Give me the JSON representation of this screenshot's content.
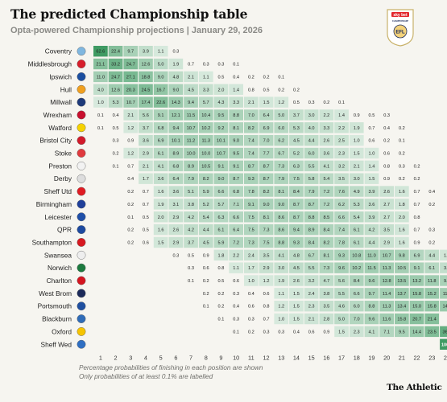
{
  "header": {
    "title": "The predicted Championship table",
    "subtitle": "Opta-powered Championship projections | January 29, 2026"
  },
  "logo": {
    "brand": "sky bet",
    "league": "CHAMPIONSHIP",
    "badge": "EFL"
  },
  "notes": {
    "line1": "Percentage probabilities of finishing in each position are shown",
    "line2": "Only probabilities of at least 0.1% are labelled"
  },
  "footer": {
    "brand": "The Athletic"
  },
  "colors": {
    "background": "#f6f5f0",
    "cell_low": "#eef5ef",
    "cell_high": "#3f9b63"
  },
  "chart_data": {
    "type": "heatmap",
    "x": [
      1,
      2,
      3,
      4,
      5,
      6,
      7,
      8,
      9,
      10,
      11,
      12,
      13,
      14,
      15,
      16,
      17,
      18,
      19,
      20,
      21,
      22,
      23,
      24
    ],
    "rows": [
      {
        "team": "Coventry",
        "crest_color": "#7fb7e0",
        "values": [
          62.6,
          22.4,
          9.7,
          3.9,
          1.1,
          0.3
        ]
      },
      {
        "team": "Middlesbrough",
        "crest_color": "#d71e2b",
        "values": [
          21.1,
          33.2,
          24.7,
          12.6,
          5.0,
          1.9,
          0.7,
          0.3,
          0.3,
          0.1
        ]
      },
      {
        "team": "Ipswich",
        "crest_color": "#1c4fa0",
        "values": [
          11.0,
          24.7,
          27.1,
          18.8,
          9.0,
          4.8,
          2.1,
          1.1,
          0.5,
          0.4,
          0.2,
          0.2,
          0.1
        ]
      },
      {
        "team": "Hull",
        "crest_color": "#f0a020",
        "values": [
          4.0,
          12.6,
          20.3,
          24.5,
          16.7,
          9.0,
          4.5,
          3.3,
          2.0,
          1.4,
          0.8,
          0.5,
          0.2,
          0.2
        ]
      },
      {
        "team": "Millwall",
        "crest_color": "#1e3a7a",
        "values": [
          1.0,
          5.3,
          10.7,
          17.4,
          22.6,
          14.3,
          9.4,
          5.7,
          4.3,
          3.3,
          2.1,
          1.5,
          1.2,
          0.5,
          0.3,
          0.2,
          0.1
        ]
      },
      {
        "team": "Wrexham",
        "crest_color": "#c8102e",
        "values": [
          0.1,
          0.4,
          2.1,
          5.6,
          9.1,
          12.1,
          11.5,
          10.4,
          9.5,
          8.8,
          7.0,
          6.4,
          5.0,
          3.7,
          3.0,
          2.2,
          1.4,
          0.9,
          0.5,
          0.3
        ]
      },
      {
        "team": "Watford",
        "crest_color": "#f5d200",
        "values": [
          0.1,
          0.5,
          1.2,
          3.7,
          6.8,
          9.4,
          10.7,
          10.2,
          9.2,
          8.1,
          8.2,
          6.9,
          6.0,
          5.3,
          4.0,
          3.3,
          2.2,
          1.9,
          0.7,
          0.4,
          0.2
        ]
      },
      {
        "team": "Bristol City",
        "crest_color": "#d21a2a",
        "values": [
          null,
          0.3,
          0.9,
          3.6,
          6.9,
          10.1,
          11.2,
          11.3,
          10.1,
          9.0,
          7.4,
          7.0,
          6.2,
          4.5,
          4.4,
          2.6,
          2.5,
          1.0,
          0.6,
          0.2,
          0.1
        ]
      },
      {
        "team": "Stoke",
        "crest_color": "#e03a3e",
        "values": [
          null,
          0.2,
          1.2,
          2.9,
          6.1,
          8.9,
          10.0,
          10.0,
          10.7,
          9.5,
          7.4,
          7.7,
          6.7,
          5.2,
          6.0,
          3.6,
          2.3,
          1.5,
          1.0,
          0.6,
          0.2
        ]
      },
      {
        "team": "Preston",
        "crest_color": "#f2f2f2",
        "values": [
          null,
          0.1,
          0.7,
          2.1,
          4.1,
          6.8,
          8.9,
          10.5,
          9.1,
          9.1,
          8.7,
          8.7,
          7.3,
          6.3,
          5.5,
          4.1,
          3.2,
          2.1,
          1.4,
          0.8,
          0.3,
          0.2
        ]
      },
      {
        "team": "Derby",
        "crest_color": "#dddddd",
        "values": [
          null,
          null,
          0.4,
          1.7,
          3.6,
          6.4,
          7.9,
          8.2,
          9.0,
          8.7,
          9.3,
          8.7,
          7.9,
          7.5,
          5.8,
          5.4,
          3.5,
          3.0,
          1.5,
          0.9,
          0.2,
          0.2
        ]
      },
      {
        "team": "Sheff Utd",
        "crest_color": "#e01b22",
        "values": [
          null,
          null,
          0.2,
          0.7,
          1.6,
          3.6,
          5.1,
          5.9,
          6.6,
          6.8,
          7.8,
          8.2,
          8.1,
          8.4,
          7.9,
          7.2,
          7.6,
          4.9,
          3.9,
          2.6,
          1.6,
          0.7,
          0.4
        ]
      },
      {
        "team": "Birmingham",
        "crest_color": "#1f3f9a",
        "values": [
          null,
          null,
          0.2,
          0.7,
          1.9,
          3.1,
          3.8,
          5.2,
          5.7,
          7.1,
          9.1,
          9.0,
          9.0,
          8.7,
          8.7,
          7.2,
          6.2,
          5.3,
          3.6,
          2.7,
          1.8,
          0.7,
          0.2
        ]
      },
      {
        "team": "Leicester",
        "crest_color": "#1f4fa8",
        "values": [
          null,
          null,
          0.1,
          0.5,
          2.0,
          2.9,
          4.2,
          5.4,
          6.3,
          6.6,
          7.5,
          8.1,
          8.6,
          8.7,
          8.8,
          8.5,
          6.6,
          5.4,
          3.9,
          2.7,
          2.0,
          0.8
        ]
      },
      {
        "team": "QPR",
        "crest_color": "#1d4aa0",
        "values": [
          null,
          null,
          0.2,
          0.5,
          1.6,
          2.6,
          4.2,
          4.4,
          6.1,
          6.4,
          7.5,
          7.3,
          8.6,
          9.4,
          8.9,
          8.4,
          7.4,
          6.1,
          4.2,
          3.5,
          1.6,
          0.7,
          0.3
        ]
      },
      {
        "team": "Southampton",
        "crest_color": "#d71920",
        "values": [
          null,
          null,
          0.2,
          0.6,
          1.5,
          2.9,
          3.7,
          4.5,
          5.9,
          7.2,
          7.3,
          7.5,
          8.8,
          9.3,
          8.4,
          8.2,
          7.8,
          6.1,
          4.4,
          2.9,
          1.6,
          0.9,
          0.2
        ]
      },
      {
        "team": "Swansea",
        "crest_color": "#eeeeee",
        "values": [
          null,
          null,
          null,
          null,
          null,
          0.3,
          0.5,
          0.9,
          1.8,
          2.2,
          2.4,
          3.5,
          4.1,
          4.8,
          6.7,
          8.1,
          9.3,
          10.8,
          11.0,
          10.7,
          9.8,
          6.9,
          4.4,
          1.7
        ]
      },
      {
        "team": "Norwich",
        "crest_color": "#1c7a3e",
        "values": [
          null,
          null,
          null,
          null,
          null,
          null,
          0.3,
          0.6,
          0.8,
          1.1,
          1.7,
          2.9,
          3.0,
          4.5,
          5.5,
          7.3,
          9.6,
          10.2,
          11.5,
          11.3,
          10.5,
          9.1,
          6.1,
          3.8
        ]
      },
      {
        "team": "Charlton",
        "crest_color": "#d4141f",
        "values": [
          null,
          null,
          null,
          null,
          null,
          null,
          0.1,
          0.2,
          0.5,
          0.6,
          1.0,
          1.2,
          1.9,
          2.6,
          3.2,
          4.7,
          5.6,
          8.4,
          9.6,
          12.8,
          13.5,
          13.2,
          11.8,
          9.2
        ]
      },
      {
        "team": "West Brom",
        "crest_color": "#1c2a5a",
        "values": [
          null,
          null,
          null,
          null,
          null,
          null,
          null,
          0.2,
          0.2,
          0.3,
          0.4,
          0.6,
          1.1,
          1.5,
          2.4,
          3.8,
          5.5,
          6.6,
          9.7,
          11.4,
          13.7,
          15.8,
          15.2,
          11.6
        ]
      },
      {
        "team": "Portsmouth",
        "crest_color": "#1f4fa0",
        "values": [
          null,
          null,
          null,
          null,
          null,
          null,
          null,
          0.1,
          0.2,
          0.4,
          0.6,
          0.8,
          1.2,
          1.5,
          2.3,
          3.5,
          4.6,
          6.0,
          8.8,
          11.3,
          13.4,
          15.0,
          15.8,
          14.0
        ]
      },
      {
        "team": "Blackburn",
        "crest_color": "#2f6cb8",
        "values": [
          null,
          null,
          null,
          null,
          null,
          null,
          null,
          null,
          0.1,
          0.3,
          0.3,
          0.7,
          1.0,
          1.5,
          2.1,
          2.8,
          5.0,
          7.0,
          9.6,
          11.6,
          15.8,
          20.7,
          21.4
        ]
      },
      {
        "team": "Oxford",
        "crest_color": "#f6c400",
        "values": [
          null,
          null,
          null,
          null,
          null,
          null,
          null,
          null,
          null,
          0.1,
          0.2,
          0.3,
          0.3,
          0.4,
          0.6,
          0.9,
          1.5,
          2.3,
          4.1,
          7.1,
          9.5,
          14.4,
          23.5,
          36.9
        ]
      },
      {
        "team": "Sheff Wed",
        "crest_color": "#2f6fc2",
        "values": [
          null,
          null,
          null,
          null,
          null,
          null,
          null,
          null,
          null,
          null,
          null,
          null,
          null,
          null,
          null,
          null,
          null,
          null,
          null,
          null,
          null,
          null,
          null,
          100.0
        ]
      }
    ]
  }
}
